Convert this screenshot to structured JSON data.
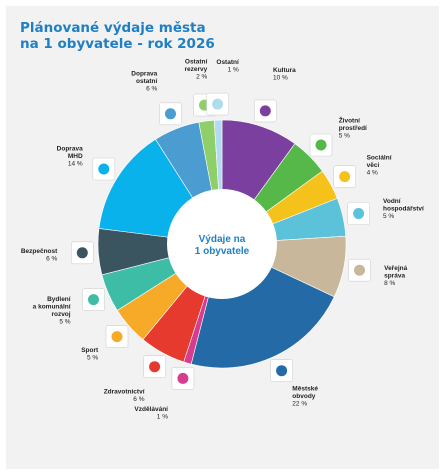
{
  "title_line1": "Plánované výdaje města",
  "title_line2": "na 1 obyvatele - rok 2026",
  "chart_data": {
    "type": "pie",
    "center_label": [
      "Výdaje na",
      "1 obyvatele"
    ],
    "slices": [
      {
        "label": [
          "Kultura"
        ],
        "value_label": "10 %",
        "value": 10,
        "color": "#7b3fa0",
        "icon": "theater-masks-icon"
      },
      {
        "label": [
          "Životní",
          "prostředí"
        ],
        "value_label": "5 %",
        "value": 5,
        "color": "#56b848",
        "icon": "trees-icon"
      },
      {
        "label": [
          "Sociální",
          "věci"
        ],
        "value_label": "4 %",
        "value": 4,
        "color": "#f5c11b",
        "icon": "family-icon"
      },
      {
        "label": [
          "Vodní",
          "hospodářství"
        ],
        "value_label": "5 %",
        "value": 5,
        "color": "#5cc2d9",
        "icon": "water-tap-icon"
      },
      {
        "label": [
          "Veřejná",
          "správa"
        ],
        "value_label": "8 %",
        "value": 8,
        "color": "#c9b79c",
        "icon": "documents-icon"
      },
      {
        "label": [
          "Městské",
          "obvody"
        ],
        "value_label": "22 %",
        "value": 22,
        "color": "#236aa6",
        "icon": "people-icon"
      },
      {
        "label": [
          "Vzdělávání"
        ],
        "value_label": "1 %",
        "value": 1,
        "color": "#d83c8f",
        "icon": "student-icon"
      },
      {
        "label": [
          "Zdravotnictví"
        ],
        "value_label": "6 %",
        "value": 6,
        "color": "#e63a2e",
        "icon": "first-aid-kit-icon"
      },
      {
        "label": [
          "Sport"
        ],
        "value_label": "5 %",
        "value": 5,
        "color": "#f7a928",
        "icon": "football-player-icon"
      },
      {
        "label": [
          "Bydlení",
          "a komunální",
          "rozvoj"
        ],
        "value_label": "5 %",
        "value": 5,
        "color": "#3dbda5",
        "icon": "building-icon"
      },
      {
        "label": [
          "Bezpečnost"
        ],
        "value_label": "6 %",
        "value": 6,
        "color": "#3b5560",
        "icon": "police-officer-icon"
      },
      {
        "label": [
          "Doprava",
          "MHD"
        ],
        "value_label": "14 %",
        "value": 14,
        "color": "#0ab2ec",
        "icon": "bus-icon"
      },
      {
        "label": [
          "Doprava",
          "ostatní"
        ],
        "value_label": "6 %",
        "value": 6,
        "color": "#4a9cd1",
        "icon": "car-icon"
      },
      {
        "label": [
          "Ostatní",
          "rezervy"
        ],
        "value_label": "2 %",
        "value": 2,
        "color": "#8fcf6a",
        "icon": "piggy-bank-icon"
      },
      {
        "label": [
          "Ostatní"
        ],
        "value_label": "1 %",
        "value": 1,
        "color": "#b1dbef",
        "icon": "scales-icon"
      }
    ]
  }
}
